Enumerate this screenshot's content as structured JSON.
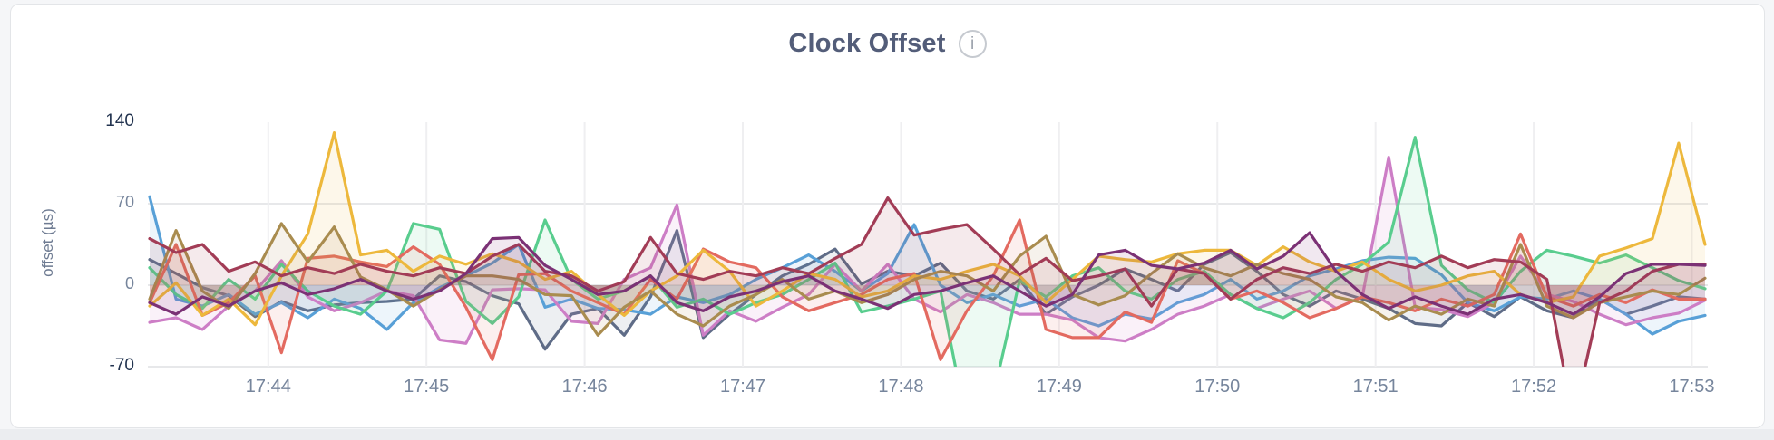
{
  "card": {
    "title": "Clock Offset",
    "info_icon": "i"
  },
  "chart_data": {
    "type": "line",
    "title": "Clock Offset",
    "ylabel": "offset (µs)",
    "x_ticks": [
      "17:44",
      "17:45",
      "17:46",
      "17:47",
      "17:48",
      "17:49",
      "17:50",
      "17:51",
      "17:52",
      "17:53"
    ],
    "y_ticks": [
      140,
      70,
      0,
      -70
    ],
    "ylim": [
      -70,
      150
    ],
    "start_time": "17:43:15",
    "interval_seconds": 10,
    "grid": true,
    "legend": false,
    "series": [
      {
        "color": "#5F6C87",
        "values": [
          22,
          10,
          -2,
          -9,
          -27,
          -14,
          -22,
          -17,
          -15,
          -14,
          -12,
          8,
          3,
          -9,
          -16,
          -55,
          -25,
          -20,
          -43,
          -10,
          47,
          -45,
          -25,
          -8,
          8,
          18,
          31,
          1,
          12,
          8,
          19,
          -5,
          -12,
          5,
          -25,
          -10,
          0,
          14,
          5,
          -5,
          18,
          28,
          12,
          -8,
          -18,
          -5,
          -12,
          -20,
          -33,
          -35,
          -15,
          -27,
          -10,
          -22,
          -28,
          -12,
          -25,
          -18,
          -10,
          -12
        ]
      },
      {
        "color": "#58A0D7",
        "values": [
          76,
          -12,
          -18,
          -8,
          -25,
          -15,
          -28,
          -12,
          -20,
          -38,
          -15,
          -2,
          8,
          19,
          35,
          -19,
          -12,
          -20,
          -21,
          -25,
          -10,
          -15,
          -8,
          5,
          15,
          26,
          12,
          -5,
          10,
          52,
          0,
          -15,
          -8,
          -18,
          -12,
          -28,
          -35,
          -25,
          -29,
          -15,
          -8,
          5,
          -12,
          -5,
          8,
          14,
          21,
          24,
          23,
          9,
          -15,
          -22,
          -10,
          -12,
          -5,
          -12,
          -25,
          -42,
          -31,
          -26
        ]
      },
      {
        "color": "#CD7EC6",
        "values": [
          -32,
          -28,
          -38,
          -18,
          -5,
          21,
          -10,
          -22,
          -15,
          -5,
          -9,
          -47,
          -50,
          -4,
          -3,
          -4,
          -31,
          -33,
          5,
          15,
          69,
          -43,
          -22,
          -31,
          -19,
          -8,
          18,
          -5,
          18,
          -12,
          -23,
          -8,
          -15,
          -25,
          -25,
          -30,
          -45,
          -48,
          -38,
          -25,
          -18,
          -8,
          -20,
          -12,
          -5,
          -20,
          -10,
          110,
          -19,
          -21,
          -27,
          -15,
          25,
          -8,
          -14,
          -25,
          -34,
          -28,
          -24,
          -13
        ]
      },
      {
        "color": "#59CD8E",
        "values": [
          15,
          -8,
          -20,
          5,
          -12,
          18,
          -5,
          -18,
          -25,
          -5,
          53,
          48,
          -14,
          -33,
          -10,
          56,
          5,
          -12,
          -5,
          8,
          -19,
          -12,
          -25,
          -15,
          -8,
          5,
          19,
          -23,
          -18,
          -12,
          -5,
          -120,
          -95,
          4,
          -10,
          8,
          15,
          -5,
          -12,
          5,
          12,
          -8,
          -20,
          -28,
          -15,
          5,
          18,
          37,
          127,
          17,
          -4,
          -15,
          12,
          30,
          25,
          19,
          26,
          15,
          4,
          -3
        ]
      },
      {
        "color": "#E36A60",
        "values": [
          -15,
          35,
          -26,
          -15,
          8,
          -58,
          23,
          25,
          20,
          16,
          33,
          18,
          -19,
          -64,
          9,
          10,
          -5,
          -15,
          -25,
          5,
          -12,
          31,
          20,
          15,
          -10,
          -22,
          -15,
          -8,
          5,
          10,
          -64,
          -22,
          8,
          56,
          -38,
          -45,
          -45,
          -23,
          -32,
          21,
          10,
          -12,
          -5,
          -15,
          -28,
          -20,
          -10,
          -15,
          -22,
          -12,
          -18,
          -8,
          44,
          -10,
          -18,
          -8,
          -15,
          -4,
          -12,
          -12
        ]
      },
      {
        "color": "#EDB83C",
        "values": [
          -18,
          2,
          -26,
          -12,
          -34,
          8,
          44,
          131,
          26,
          30,
          12,
          25,
          18,
          27,
          20,
          5,
          12,
          -8,
          -26,
          -5,
          8,
          30,
          12,
          -18,
          -5,
          10,
          5,
          -10,
          -5,
          8,
          5,
          12,
          18,
          8,
          -15,
          5,
          25,
          22,
          20,
          27,
          30,
          30,
          17,
          33,
          20,
          12,
          20,
          5,
          -5,
          0,
          8,
          12,
          -8,
          -15,
          -10,
          25,
          32,
          40,
          122,
          35
        ]
      },
      {
        "color": "#A98C4F",
        "values": [
          -12,
          47,
          -5,
          -20,
          10,
          53,
          20,
          50,
          7,
          -4,
          -18,
          -4,
          8,
          8,
          5,
          -8,
          -9,
          -43,
          -19,
          -5,
          -25,
          -35,
          -18,
          -8,
          5,
          -12,
          -5,
          -15,
          -8,
          5,
          12,
          8,
          -5,
          25,
          42,
          -8,
          -17,
          -9,
          10,
          27,
          15,
          8,
          18,
          10,
          5,
          -10,
          -15,
          -30,
          -18,
          -25,
          -12,
          -18,
          35,
          -18,
          -28,
          -15,
          -10,
          -5,
          -8,
          6
        ]
      },
      {
        "color": "#A23C56",
        "values": [
          40,
          28,
          35,
          12,
          20,
          8,
          15,
          10,
          18,
          12,
          8,
          15,
          10,
          25,
          35,
          12,
          8,
          -5,
          3,
          41,
          10,
          5,
          12,
          8,
          15,
          10,
          23,
          35,
          75,
          43,
          48,
          52,
          31,
          9,
          23,
          4,
          8,
          14,
          -18,
          14,
          10,
          -12,
          5,
          15,
          10,
          18,
          12,
          20,
          15,
          25,
          15,
          22,
          20,
          5,
          -115,
          -15,
          -5,
          12,
          18,
          18
        ]
      },
      {
        "color": "#7B3175",
        "values": [
          -15,
          -25,
          -10,
          -18,
          -5,
          2,
          -8,
          -3,
          5,
          -5,
          -12,
          -5,
          10,
          40,
          41,
          17,
          5,
          -8,
          -5,
          8,
          -15,
          -22,
          -10,
          -5,
          3,
          8,
          -5,
          -12,
          -20,
          -8,
          -5,
          2,
          8,
          -5,
          -18,
          -8,
          26,
          30,
          17,
          14,
          19,
          30,
          14,
          25,
          45,
          12,
          -8,
          -20,
          -10,
          -18,
          -25,
          -12,
          -8,
          -15,
          -25,
          -10,
          10,
          18,
          18,
          17
        ]
      }
    ]
  }
}
